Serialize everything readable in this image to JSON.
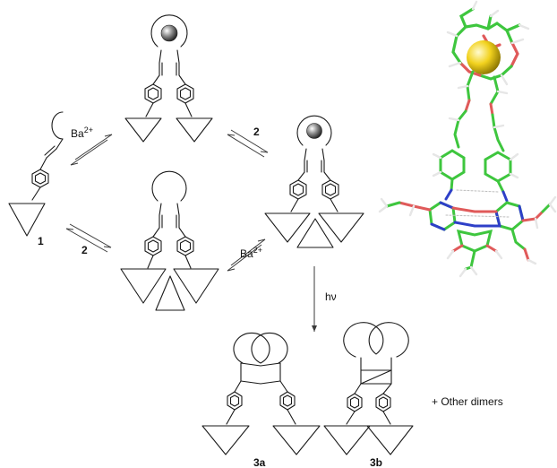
{
  "labels": {
    "ba_top": "Ba",
    "ba_charge": "2+",
    "two_top": "2",
    "one": "1",
    "two_bottom": "2",
    "ba_bottom": "Ba",
    "ba_bottom_charge": "2+",
    "hv": "hν",
    "c3a": "3a",
    "c3b": "3b",
    "other": "+ Other dimers"
  },
  "colors": {
    "carbon": "#3ec63e",
    "oxygen": "#e05a5a",
    "nitrogen": "#2e3fc8",
    "hydrogen": "#e6e6e6",
    "barium": "#f2d21e",
    "bond": "#1a1a1a"
  }
}
